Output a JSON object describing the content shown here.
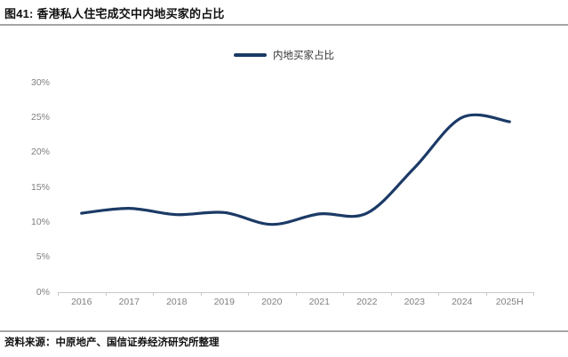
{
  "figure": {
    "title": "图41: 香港私人住宅成交中内地买家的占比",
    "source": "资料来源：中原地产、国信证券经济研究所整理"
  },
  "chart_data": {
    "type": "line",
    "title": "图41: 香港私人住宅成交中内地买家的占比",
    "categories": [
      "2016",
      "2017",
      "2018",
      "2019",
      "2020",
      "2021",
      "2022",
      "2023",
      "2024",
      "2025H"
    ],
    "series": [
      {
        "name": "内地买家占比",
        "values": [
          11.3,
          12.0,
          11.1,
          11.4,
          9.7,
          11.2,
          11.3,
          17.8,
          25.0,
          24.4
        ]
      }
    ],
    "xlabel": "",
    "ylabel": "",
    "ylim": [
      0,
      30
    ],
    "yticks": [
      0,
      5,
      10,
      15,
      20,
      25,
      30
    ],
    "ytick_labels": [
      "0%",
      "5%",
      "10%",
      "15%",
      "20%",
      "25%",
      "30%"
    ],
    "grid": false,
    "smooth": true,
    "legend_position": "top",
    "line_color": "#1b3a66"
  },
  "colors": {
    "accent": "#1b3a66",
    "divider": "#a6a6a6",
    "axis": "#c9c9c9",
    "tick_label": "#7f7f7f",
    "text": "#111111"
  }
}
